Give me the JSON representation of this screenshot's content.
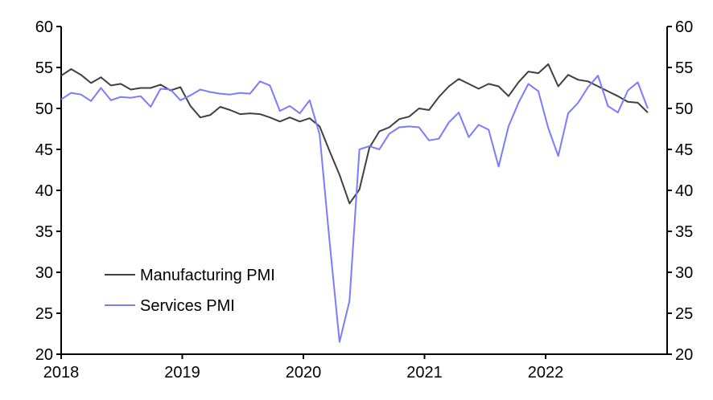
{
  "chart_data": {
    "type": "line",
    "title": "",
    "xlabel": "",
    "ylabel": "",
    "x_start": "Dec 2017",
    "x_end": "Nov 2022",
    "frequency": "monthly",
    "x_ticks": [
      "2018",
      "2019",
      "2020",
      "2021",
      "2022"
    ],
    "ylim": [
      20,
      60
    ],
    "y_ticks": [
      20,
      25,
      30,
      35,
      40,
      45,
      50,
      55,
      60
    ],
    "y_tick_labels": [
      "20",
      "25",
      "30",
      "35",
      "40",
      "45",
      "50",
      "55",
      "60"
    ],
    "secondary_y_ticks_mirror": true,
    "grid": false,
    "legend_position": "bottom-left",
    "series": [
      {
        "name": "Manufacturing PMI",
        "color": "#404040",
        "values": [
          54.0,
          54.8,
          54.1,
          53.1,
          53.8,
          52.8,
          53.0,
          52.3,
          52.5,
          52.5,
          52.9,
          52.2,
          52.6,
          50.3,
          48.9,
          49.2,
          50.2,
          49.8,
          49.3,
          49.4,
          49.3,
          48.9,
          48.4,
          48.9,
          48.4,
          48.8,
          47.8,
          44.8,
          41.9,
          38.4,
          40.1,
          45.2,
          47.2,
          47.7,
          48.7,
          49.0,
          50.0,
          49.8,
          51.4,
          52.7,
          53.6,
          53.0,
          52.4,
          53.0,
          52.7,
          51.5,
          53.2,
          54.5,
          54.3,
          55.4,
          52.7,
          54.1,
          53.5,
          53.3,
          52.7,
          52.1,
          51.5,
          50.8,
          50.7,
          49.5
        ]
      },
      {
        "name": "Services PMI",
        "color": "#7b7bff",
        "values": [
          51.1,
          51.9,
          51.7,
          50.9,
          52.5,
          51.0,
          51.4,
          51.3,
          51.5,
          50.2,
          52.4,
          52.3,
          51.0,
          51.6,
          52.3,
          52.0,
          51.8,
          51.7,
          51.9,
          51.8,
          53.3,
          52.8,
          49.7,
          50.3,
          49.4,
          51.0,
          46.8,
          33.8,
          21.5,
          26.5,
          45.0,
          45.4,
          45.0,
          46.9,
          47.7,
          47.8,
          47.7,
          46.1,
          46.3,
          48.3,
          49.5,
          46.5,
          48.0,
          47.4,
          42.9,
          47.8,
          50.7,
          53.0,
          52.1,
          47.6,
          44.2,
          49.4,
          50.7,
          52.6,
          54.0,
          50.3,
          49.5,
          52.2,
          53.2,
          50.0
        ]
      }
    ]
  }
}
